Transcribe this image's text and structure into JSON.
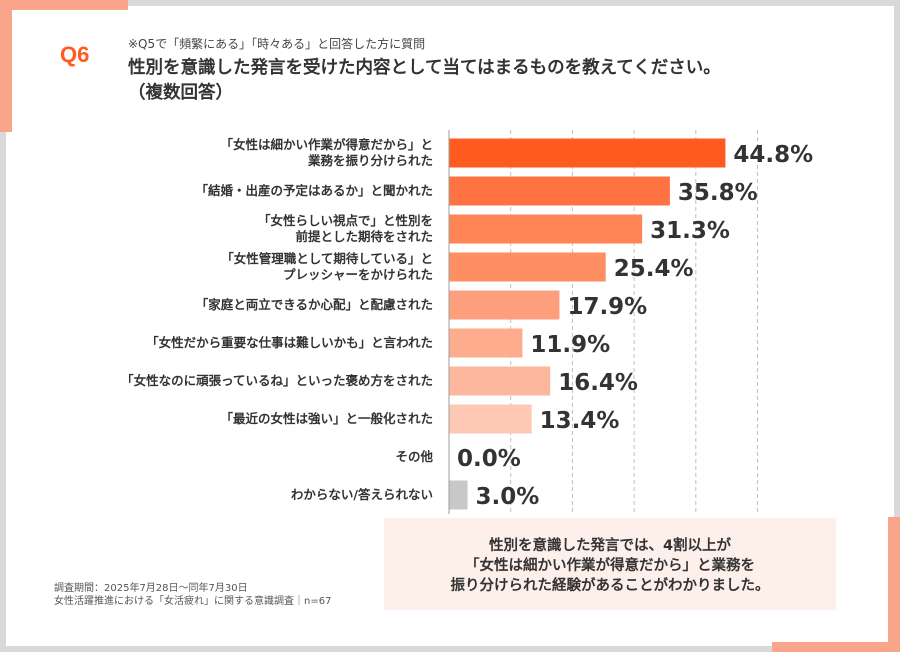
{
  "question": {
    "number": "Q6",
    "note": "※Q5で「頻繁にある」「時々ある」と回答した方に質問",
    "title_line1": "性別を意識した発言を受けた内容として当てはまるものを教えてください。",
    "title_line2": "（複数回答）"
  },
  "chart_data": {
    "type": "bar",
    "orientation": "horizontal",
    "categories": [
      [
        "「女性は細かい作業が得意だから」と",
        "業務を振り分けられた"
      ],
      [
        "「結婚・出産の予定はあるか」と聞かれた"
      ],
      [
        "「女性らしい視点で」と性別を",
        "前提とした期待をされた"
      ],
      [
        "「女性管理職として期待している」と",
        "プレッシャーをかけられた"
      ],
      [
        "「家庭と両立できるか心配」と配慮された"
      ],
      [
        "「女性だから重要な仕事は難しいかも」と言われた"
      ],
      [
        "「女性なのに頑張っているね」といった褒め方をされた"
      ],
      [
        "「最近の女性は強い」と一般化された"
      ],
      [
        "その他"
      ],
      [
        "わからない/答えられない"
      ]
    ],
    "values": [
      44.8,
      35.8,
      31.3,
      25.4,
      17.9,
      11.9,
      16.4,
      13.4,
      0.0,
      3.0
    ],
    "value_labels": [
      "44.8%",
      "35.8%",
      "31.3%",
      "25.4%",
      "17.9%",
      "11.9%",
      "16.4%",
      "13.4%",
      "0.0%",
      "3.0%"
    ],
    "colors": [
      "#ff5a1f",
      "#ff7342",
      "#ff8556",
      "#ff8f63",
      "#fd9f7d",
      "#fdac8e",
      "#fdb79d",
      "#fdc9b5",
      "#fdd5c5",
      "#c8c8c8"
    ],
    "xlim": [
      0,
      50
    ],
    "grid": true
  },
  "summary": {
    "line1": "性別を意識した発言では、4割以上が",
    "line2": "「女性は細かい作業が得意だから」と業務を",
    "line3": "振り分けられた経験があることがわかりました。"
  },
  "footnote": {
    "line1": "調査期間：2025年7月28日～同年7月30日",
    "line2": "女性活躍推進における「女活疲れ」に関する意識調査｜n=67"
  }
}
